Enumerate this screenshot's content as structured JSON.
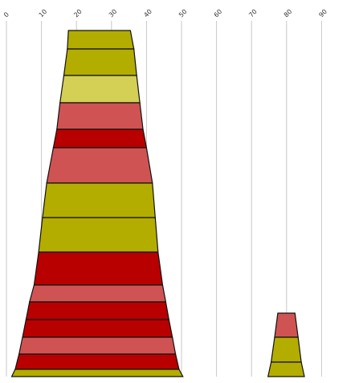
{
  "chart_data": {
    "type": "bar",
    "subtype": "stacked-trapezoid",
    "title": "",
    "xlabel": "",
    "ylabel": "",
    "x_axis": {
      "position": "top",
      "label_rotation_deg": -45,
      "range": [
        0,
        100
      ],
      "ticks": [
        "0",
        "10",
        "20",
        "30",
        "40",
        "50",
        "60",
        "70",
        "80",
        "90"
      ]
    },
    "grid": true,
    "legend": "none",
    "colors": {
      "olive": "#b3ad00",
      "light_olive": "#d4cf55",
      "salmon": "#d05353",
      "dark_red": "#b80000",
      "outline": "#111111",
      "grid": "#c8c8c8"
    },
    "shapes": [
      {
        "name": "left-stack",
        "bands": [
          {
            "color": "olive",
            "top": {
              "from": 17.7,
              "to": 35.4
            },
            "bottom": {
              "from": 17.4,
              "to": 36.4
            }
          },
          {
            "color": "olive",
            "top": {
              "from": 17.4,
              "to": 36.4
            },
            "bottom": {
              "from": 16.4,
              "to": 37.2
            }
          },
          {
            "color": "light_olive",
            "top": {
              "from": 16.4,
              "to": 37.2
            },
            "bottom": {
              "from": 15.3,
              "to": 38.1
            }
          },
          {
            "color": "salmon",
            "top": {
              "from": 15.3,
              "to": 38.1
            },
            "bottom": {
              "from": 14.4,
              "to": 39.0
            }
          },
          {
            "color": "dark_red",
            "top": {
              "from": 14.4,
              "to": 39.0
            },
            "bottom": {
              "from": 13.4,
              "to": 40.0
            }
          },
          {
            "color": "salmon",
            "top": {
              "from": 13.4,
              "to": 40.0
            },
            "bottom": {
              "from": 11.5,
              "to": 41.7
            }
          },
          {
            "color": "olive",
            "top": {
              "from": 11.5,
              "to": 41.7
            },
            "bottom": {
              "from": 10.3,
              "to": 42.5
            }
          },
          {
            "color": "olive",
            "top": {
              "from": 10.3,
              "to": 42.5
            },
            "bottom": {
              "from": 9.2,
              "to": 43.3
            }
          },
          {
            "color": "dark_red",
            "top": {
              "from": 9.2,
              "to": 43.3
            },
            "bottom": {
              "from": 7.9,
              "to": 44.6
            }
          },
          {
            "color": "salmon",
            "top": {
              "from": 7.9,
              "to": 44.6
            },
            "bottom": {
              "from": 6.6,
              "to": 45.5
            }
          },
          {
            "color": "dark_red",
            "top": {
              "from": 6.6,
              "to": 45.5
            },
            "bottom": {
              "from": 5.6,
              "to": 46.4
            }
          },
          {
            "color": "dark_red",
            "top": {
              "from": 5.6,
              "to": 46.4
            },
            "bottom": {
              "from": 4.6,
              "to": 47.4
            }
          },
          {
            "color": "salmon",
            "top": {
              "from": 4.6,
              "to": 47.4
            },
            "bottom": {
              "from": 3.6,
              "to": 48.3
            }
          },
          {
            "color": "dark_red",
            "top": {
              "from": 3.6,
              "to": 48.3
            },
            "bottom": {
              "from": 2.5,
              "to": 49.3
            }
          },
          {
            "color": "olive",
            "top": {
              "from": 2.5,
              "to": 49.3
            },
            "bottom": {
              "from": 1.5,
              "to": 50.4
            }
          }
        ]
      },
      {
        "name": "right-stack",
        "bands": [
          {
            "color": "salmon",
            "top": {
              "from": 77.5,
              "to": 82.4
            },
            "bottom": {
              "from": 76.6,
              "to": 83.3
            }
          },
          {
            "color": "olive",
            "top": {
              "from": 76.6,
              "to": 83.3
            },
            "bottom": {
              "from": 75.6,
              "to": 84.2
            }
          },
          {
            "color": "olive",
            "top": {
              "from": 75.6,
              "to": 84.2
            },
            "bottom": {
              "from": 74.7,
              "to": 85.1
            }
          }
        ]
      }
    ]
  }
}
